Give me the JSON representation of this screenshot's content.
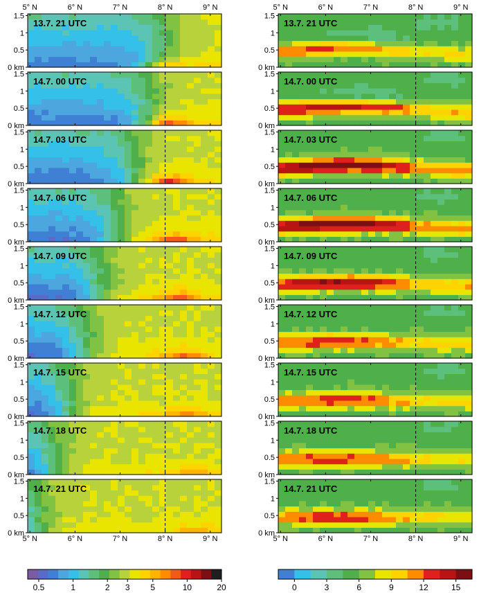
{
  "chart_data": [
    {
      "type": "heatmap",
      "panel_column": "left",
      "x_tick_labels": [
        "5° N",
        "6° N",
        "7° N",
        "8° N",
        "9° N"
      ],
      "y_tick_labels": [
        "0 km",
        "0.5",
        "1",
        "1.5"
      ],
      "x_range": [
        4.95,
        9.25
      ],
      "y_range": [
        0,
        1.55
      ],
      "reference_line_x": 8.0,
      "panel_labels": [
        "13.7. 21 UTC",
        "14.7. 00 UTC",
        "14.7. 03 UTC",
        "14.7. 06 UTC",
        "14.7. 09 UTC",
        "14.7. 12 UTC",
        "14.7. 15 UTC",
        "14.7. 18 UTC",
        "14.7. 21 UTC"
      ],
      "colorbar": {
        "tick_labels": [
          "0.5",
          "1",
          "2",
          "3",
          "5",
          "10",
          "20"
        ],
        "tick_values": [
          0.5,
          1,
          2,
          3,
          5,
          10,
          20
        ],
        "scale": "log",
        "range": [
          0.4,
          20
        ],
        "colors": [
          "#7b5aa6",
          "#5a6bc7",
          "#3f7fd4",
          "#4ea6de",
          "#34c0e8",
          "#5cc4b4",
          "#5cc07c",
          "#4fb04b",
          "#82c242",
          "#b7d23b",
          "#e9e400",
          "#ffd300",
          "#ffb400",
          "#ff8c00",
          "#f25a1c",
          "#e0201c",
          "#b91414",
          "#7a0f14",
          "#1f1f1f"
        ]
      }
    },
    {
      "type": "heatmap",
      "panel_column": "right",
      "x_tick_labels": [
        "5° N",
        "6° N",
        "7° N",
        "8° N",
        "9° N"
      ],
      "y_tick_labels": [
        "0 km",
        "0.5",
        "1",
        "1.5"
      ],
      "x_range": [
        4.95,
        9.25
      ],
      "y_range": [
        0,
        1.55
      ],
      "reference_line_x": 8.0,
      "panel_labels": [
        "13.7. 21 UTC",
        "14.7. 00 UTC",
        "14.7. 03 UTC",
        "14.7. 06 UTC",
        "14.7. 09 UTC",
        "14.7. 12 UTC",
        "14.7. 15 UTC",
        "14.7. 18 UTC",
        "14.7. 21 UTC"
      ],
      "colorbar": {
        "tick_labels": [
          "0",
          "3",
          "6",
          "9",
          "12",
          "15"
        ],
        "tick_values": [
          0,
          3,
          6,
          9,
          12,
          15
        ],
        "scale": "linear",
        "range": [
          -1.5,
          16.5
        ],
        "colors": [
          "#3f7fd4",
          "#34c0e8",
          "#5cc4b4",
          "#5cc07c",
          "#4fb04b",
          "#82c242",
          "#e9e400",
          "#ffd300",
          "#ff8c00",
          "#e0201c",
          "#b91414",
          "#7a0f14"
        ]
      }
    }
  ]
}
